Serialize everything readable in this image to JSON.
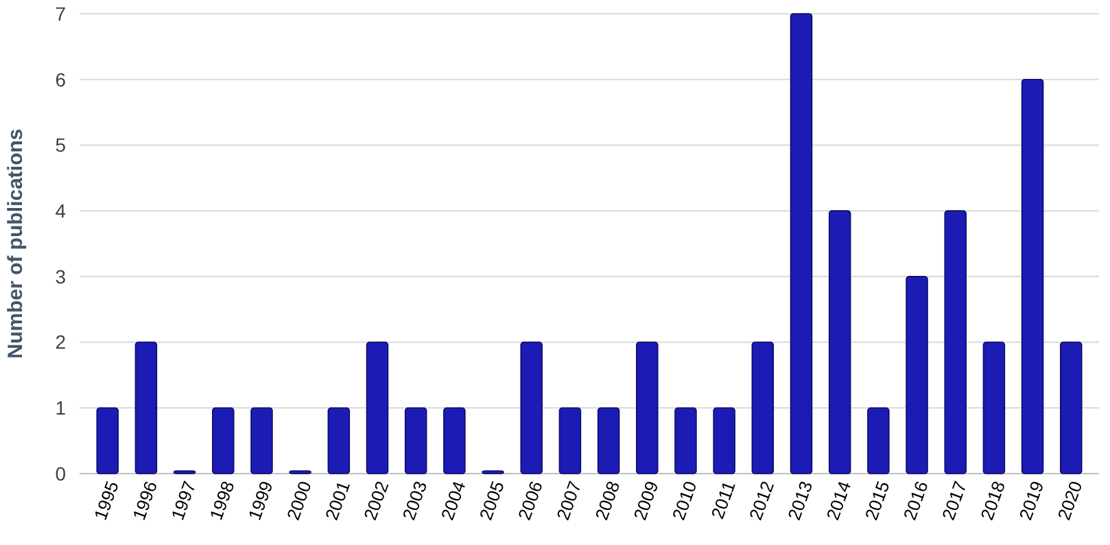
{
  "chart_data": {
    "type": "bar",
    "ylabel": "Number of publications",
    "categories": [
      "1995",
      "1996",
      "1997",
      "1998",
      "1999",
      "2000",
      "2001",
      "2002",
      "2003",
      "2004",
      "2005",
      "2006",
      "2007",
      "2008",
      "2009",
      "2010",
      "2011",
      "2012",
      "2013",
      "2014",
      "2015",
      "2016",
      "2017",
      "2018",
      "2019",
      "2020"
    ],
    "values": [
      1,
      2,
      0,
      1,
      1,
      0,
      1,
      2,
      1,
      1,
      0,
      2,
      1,
      1,
      2,
      1,
      1,
      2,
      7,
      4,
      1,
      3,
      4,
      2,
      6,
      2
    ],
    "color": "#1c1cb4",
    "ylim": [
      0,
      7
    ],
    "yticks": [
      0,
      1,
      2,
      3,
      4,
      5,
      6,
      7
    ],
    "grid": "y"
  }
}
